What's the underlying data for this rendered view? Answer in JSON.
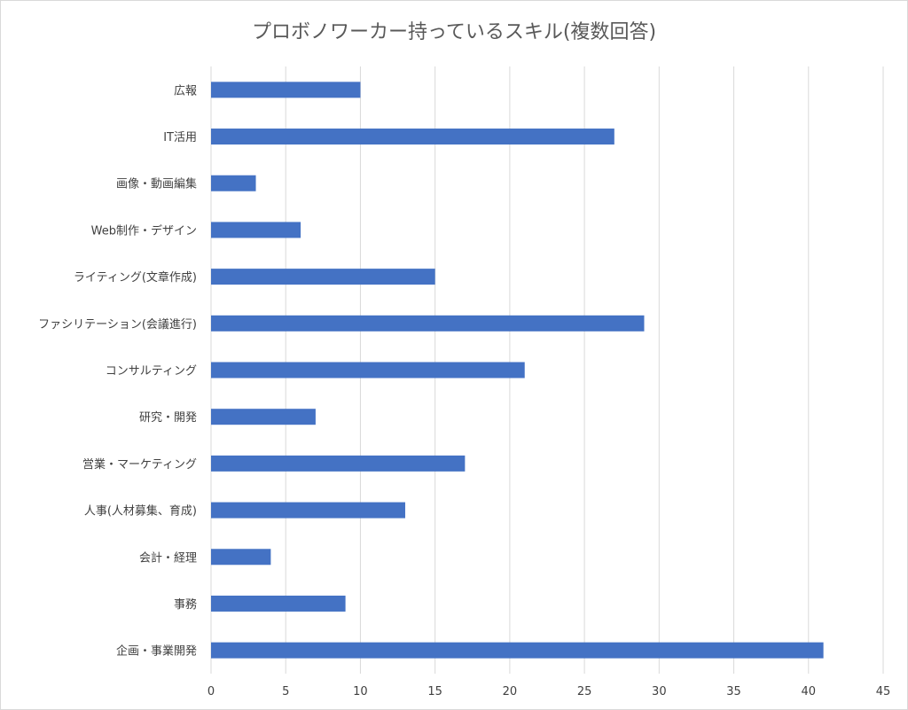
{
  "chart_data": {
    "type": "bar",
    "orientation": "horizontal",
    "title": "プロボノワーカー持っているスキル(複数回答)",
    "categories": [
      "広報",
      "IT活用",
      "画像・動画編集",
      "Web制作・デザイン",
      "ライティング(文章作成)",
      "ファシリテーション(会議進行)",
      "コンサルティング",
      "研究・開発",
      "営業・マーケティング",
      "人事(人材募集、育成)",
      "会計・経理",
      "事務",
      "企画・事業開発"
    ],
    "values": [
      10,
      27,
      3,
      6,
      15,
      29,
      21,
      7,
      17,
      13,
      4,
      9,
      41
    ],
    "xlim": [
      0,
      45
    ],
    "xticks": [
      0,
      5,
      10,
      15,
      20,
      25,
      30,
      35,
      40,
      45
    ],
    "grid": "vertical",
    "legend": "none",
    "bar_color": "#4472C4",
    "grid_color": "#d9d9d9"
  }
}
